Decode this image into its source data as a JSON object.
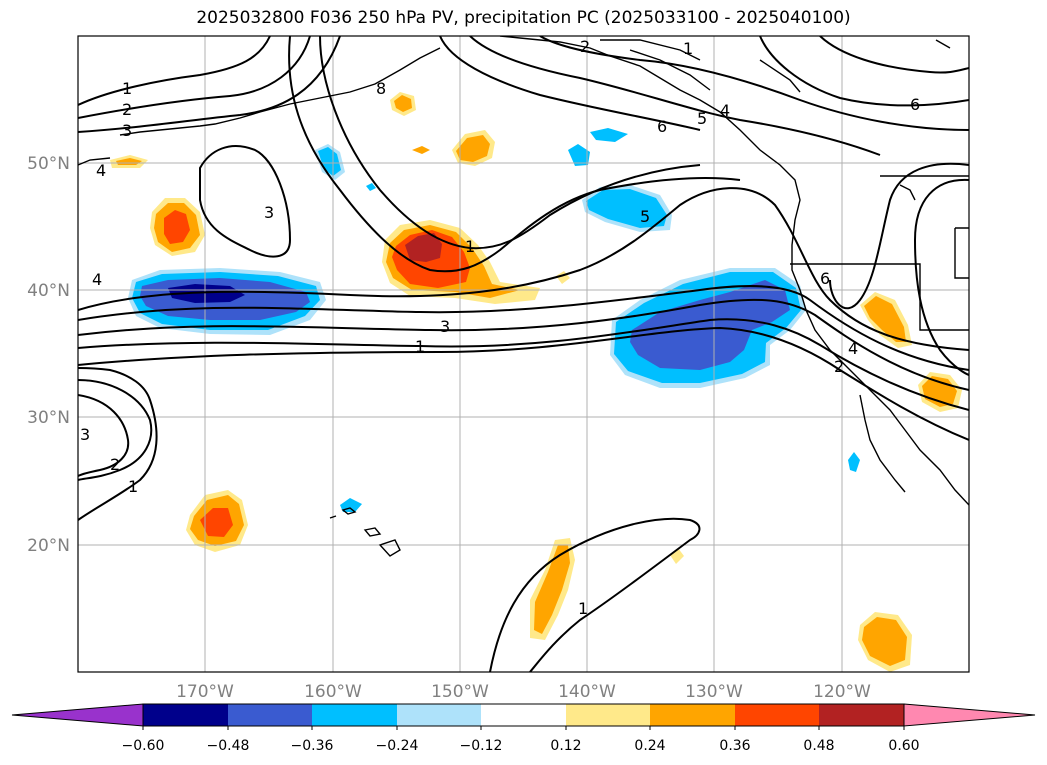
{
  "title": "2025032800 F036 250 hPa PV, precipitation PC (2025033100 - 2025040100)",
  "map": {
    "lon_labels": [
      "170°W",
      "160°W",
      "150°W",
      "140°W",
      "130°W",
      "120°W"
    ],
    "lat_labels": [
      "50°N",
      "40°N",
      "30°N",
      "20°N"
    ],
    "grid": true,
    "land_style": "coastlines only",
    "pv_contour_labels": [
      "1",
      "2",
      "3",
      "4",
      "5",
      "6",
      "8"
    ]
  },
  "colorbar": {
    "tick_labels": [
      "−0.60",
      "−0.48",
      "−0.36",
      "−0.24",
      "−0.12",
      "0.12",
      "0.24",
      "0.36",
      "0.48",
      "0.60"
    ],
    "colors": [
      "#9932cc",
      "#00008b",
      "#3a5bd0",
      "#00bfff",
      "#aee2fa",
      "#ffffff",
      "#ffe98a",
      "#ffa500",
      "#ff4500",
      "#b22222",
      "#ff88b0"
    ],
    "extend": "both",
    "orientation": "horizontal"
  }
}
